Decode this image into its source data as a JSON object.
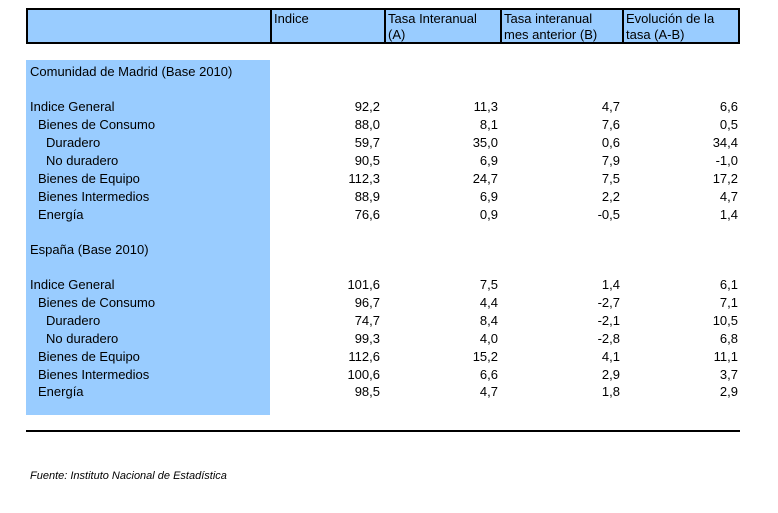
{
  "header": {
    "col1": "",
    "col2": "Indice",
    "col3a": "Tasa Interanual",
    "col3b": "(A)",
    "col4a": "Tasa interanual",
    "col4b": "mes anterior (B)",
    "col5a": "Evolución de la",
    "col5b": "tasa (A-B)"
  },
  "sections": [
    {
      "title": "Comunidad de Madrid (Base 2010)",
      "rows": [
        {
          "label": "Indice General",
          "indent": 0,
          "indice": "92,2",
          "tasa_a": "11,3",
          "tasa_b": "4,7",
          "evol": "6,6"
        },
        {
          "label": "Bienes de Consumo",
          "indent": 1,
          "indice": "88,0",
          "tasa_a": "8,1",
          "tasa_b": "7,6",
          "evol": "0,5"
        },
        {
          "label": "Duradero",
          "indent": 2,
          "indice": "59,7",
          "tasa_a": "35,0",
          "tasa_b": "0,6",
          "evol": "34,4"
        },
        {
          "label": "No duradero",
          "indent": 2,
          "indice": "90,5",
          "tasa_a": "6,9",
          "tasa_b": "7,9",
          "evol": "-1,0"
        },
        {
          "label": "Bienes de Equipo",
          "indent": 1,
          "indice": "112,3",
          "tasa_a": "24,7",
          "tasa_b": "7,5",
          "evol": "17,2"
        },
        {
          "label": "Bienes Intermedios",
          "indent": 1,
          "indice": "88,9",
          "tasa_a": "6,9",
          "tasa_b": "2,2",
          "evol": "4,7"
        },
        {
          "label": "Energía",
          "indent": 1,
          "indice": "76,6",
          "tasa_a": "0,9",
          "tasa_b": "-0,5",
          "evol": "1,4"
        }
      ]
    },
    {
      "title": "España (Base 2010)",
      "rows": [
        {
          "label": "Indice General",
          "indent": 0,
          "indice": "101,6",
          "tasa_a": "7,5",
          "tasa_b": "1,4",
          "evol": "6,1"
        },
        {
          "label": "Bienes de Consumo",
          "indent": 1,
          "indice": "96,7",
          "tasa_a": "4,4",
          "tasa_b": "-2,7",
          "evol": "7,1"
        },
        {
          "label": "Duradero",
          "indent": 2,
          "indice": "74,7",
          "tasa_a": "8,4",
          "tasa_b": "-2,1",
          "evol": "10,5"
        },
        {
          "label": "No duradero",
          "indent": 2,
          "indice": "99,3",
          "tasa_a": "4,0",
          "tasa_b": "-2,8",
          "evol": "6,8"
        },
        {
          "label": "Bienes de Equipo",
          "indent": 1,
          "indice": "112,6",
          "tasa_a": "15,2",
          "tasa_b": "4,1",
          "evol": "11,1"
        },
        {
          "label": "Bienes Intermedios",
          "indent": 1,
          "indice": "100,6",
          "tasa_a": "6,6",
          "tasa_b": "2,9",
          "evol": "3,7"
        },
        {
          "label": "Energía",
          "indent": 1,
          "indice": "98,5",
          "tasa_a": "4,7",
          "tasa_b": "1,8",
          "evol": "2,9"
        }
      ]
    }
  ],
  "footer": {
    "source": "Fuente: Instituto Nacional de Estadística"
  }
}
